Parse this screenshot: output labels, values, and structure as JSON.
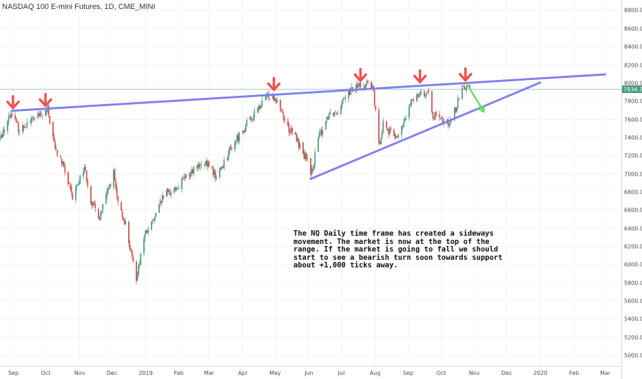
{
  "chart_data": {
    "type": "candlestick",
    "title": "NASDAQ 100 E-mini Futures, 1D, CME_MINI",
    "y_ticks": [
      5000,
      5200,
      5400,
      5600,
      5800,
      6000,
      6200,
      6400,
      6600,
      6800,
      7000,
      7200,
      7400,
      7600,
      7800,
      8000,
      8200,
      8400,
      8600,
      8800
    ],
    "y_tick_labels": [
      "5000.00",
      "5200.00",
      "5400.00",
      "5600.00",
      "5800.00",
      "6000.00",
      "6200.00",
      "6400.00",
      "6600.00",
      "6800.00",
      "7000.00",
      "7200.00",
      "7400.00",
      "7600.00",
      "7800.00",
      "8000.00",
      "8200.00",
      "8400.00",
      "8600.00",
      "8800.00"
    ],
    "ylim": [
      4880,
      8910
    ],
    "x_range": [
      "2018-08-20",
      "2020-03-16"
    ],
    "x_ticks": [
      {
        "date": "2018-09-01",
        "label": "Sep"
      },
      {
        "date": "2018-10-01",
        "label": "Oct"
      },
      {
        "date": "2018-11-01",
        "label": "Nov"
      },
      {
        "date": "2018-12-01",
        "label": "Dec"
      },
      {
        "date": "2019-01-01",
        "label": "2019"
      },
      {
        "date": "2019-02-01",
        "label": "Feb"
      },
      {
        "date": "2019-03-01",
        "label": "Mar"
      },
      {
        "date": "2019-04-01",
        "label": "Apr"
      },
      {
        "date": "2019-05-01",
        "label": "May"
      },
      {
        "date": "2019-06-01",
        "label": "Jun"
      },
      {
        "date": "2019-07-01",
        "label": "Jul"
      },
      {
        "date": "2019-08-01",
        "label": "Aug"
      },
      {
        "date": "2019-09-01",
        "label": "Sep"
      },
      {
        "date": "2019-10-01",
        "label": "Oct"
      },
      {
        "date": "2019-11-01",
        "label": "Nov"
      },
      {
        "date": "2019-12-01",
        "label": "Dec"
      },
      {
        "date": "2020-01-01",
        "label": "2020"
      },
      {
        "date": "2020-02-01",
        "label": "Feb"
      },
      {
        "date": "2020-03-01",
        "label": "Mar"
      }
    ],
    "price_path": [
      [
        "2018-08-20",
        7380
      ],
      [
        "2018-08-27",
        7580
      ],
      [
        "2018-08-31",
        7680
      ],
      [
        "2018-09-07",
        7470
      ],
      [
        "2018-09-14",
        7560
      ],
      [
        "2018-09-21",
        7610
      ],
      [
        "2018-09-28",
        7640
      ],
      [
        "2018-10-03",
        7700
      ],
      [
        "2018-10-10",
        7270
      ],
      [
        "2018-10-17",
        7100
      ],
      [
        "2018-10-26",
        6720
      ],
      [
        "2018-10-31",
        6900
      ],
      [
        "2018-11-06",
        7080
      ],
      [
        "2018-11-12",
        6700
      ],
      [
        "2018-11-20",
        6520
      ],
      [
        "2018-11-30",
        6900
      ],
      [
        "2018-12-03",
        7000
      ],
      [
        "2018-12-07",
        6650
      ],
      [
        "2018-12-14",
        6450
      ],
      [
        "2018-12-20",
        6050
      ],
      [
        "2018-12-24",
        5850
      ],
      [
        "2018-12-31",
        6300
      ],
      [
        "2019-01-10",
        6500
      ],
      [
        "2019-01-18",
        6750
      ],
      [
        "2019-01-31",
        6850
      ],
      [
        "2019-02-15",
        7050
      ],
      [
        "2019-03-01",
        7100
      ],
      [
        "2019-03-08",
        6950
      ],
      [
        "2019-03-20",
        7250
      ],
      [
        "2019-04-01",
        7480
      ],
      [
        "2019-04-15",
        7700
      ],
      [
        "2019-04-25",
        7870
      ],
      [
        "2019-05-03",
        7820
      ],
      [
        "2019-05-13",
        7500
      ],
      [
        "2019-05-20",
        7400
      ],
      [
        "2019-05-31",
        7130
      ],
      [
        "2019-06-03",
        6950
      ],
      [
        "2019-06-10",
        7380
      ],
      [
        "2019-06-20",
        7670
      ],
      [
        "2019-06-28",
        7680
      ],
      [
        "2019-07-03",
        7850
      ],
      [
        "2019-07-15",
        7950
      ],
      [
        "2019-07-26",
        8000
      ],
      [
        "2019-07-31",
        7900
      ],
      [
        "2019-08-05",
        7300
      ],
      [
        "2019-08-09",
        7560
      ],
      [
        "2019-08-15",
        7450
      ],
      [
        "2019-08-23",
        7400
      ],
      [
        "2019-08-30",
        7620
      ],
      [
        "2019-09-06",
        7840
      ],
      [
        "2019-09-12",
        7900
      ],
      [
        "2019-09-20",
        7860
      ],
      [
        "2019-09-24",
        7650
      ],
      [
        "2019-10-02",
        7570
      ],
      [
        "2019-10-08",
        7560
      ],
      [
        "2019-10-16",
        7740
      ],
      [
        "2019-10-22",
        7980
      ],
      [
        "2019-10-28",
        7935
      ]
    ],
    "last_price": 7934.75,
    "last_price_label": "7934.75",
    "trendlines": [
      {
        "name": "resistance",
        "from": [
          "2018-08-31",
          7690
        ],
        "to": [
          "2020-03-01",
          8090
        ]
      },
      {
        "name": "support",
        "from": [
          "2019-06-03",
          6940
        ],
        "to": [
          "2020-01-01",
          8000
        ]
      }
    ],
    "top_markers": [
      {
        "date": "2018-09-01",
        "price": 7690
      },
      {
        "date": "2018-10-01",
        "price": 7715
      },
      {
        "date": "2019-04-30",
        "price": 7890
      },
      {
        "date": "2019-07-19",
        "price": 7990
      },
      {
        "date": "2019-09-12",
        "price": 7975
      },
      {
        "date": "2019-10-24",
        "price": 7995
      }
    ],
    "projection": {
      "from": [
        "2019-10-25",
        7990
      ],
      "to": [
        "2019-11-10",
        7680
      ]
    },
    "colors": {
      "up": "#4a9d86",
      "down": "#d0504d",
      "trendline": "#8080ee",
      "marker": "#f05050",
      "projection": "#66dd66",
      "price_line": "#9ecfbc",
      "price_label_bg": "#4b9a83"
    },
    "annotation": [
      "The NQ Daily time frame has created a sideways",
      "movement. The market is now at the top of the",
      "range. If the market is going to fall we should",
      "start to see a bearish turn soon towards support",
      "about +1,000 ticks away."
    ]
  }
}
